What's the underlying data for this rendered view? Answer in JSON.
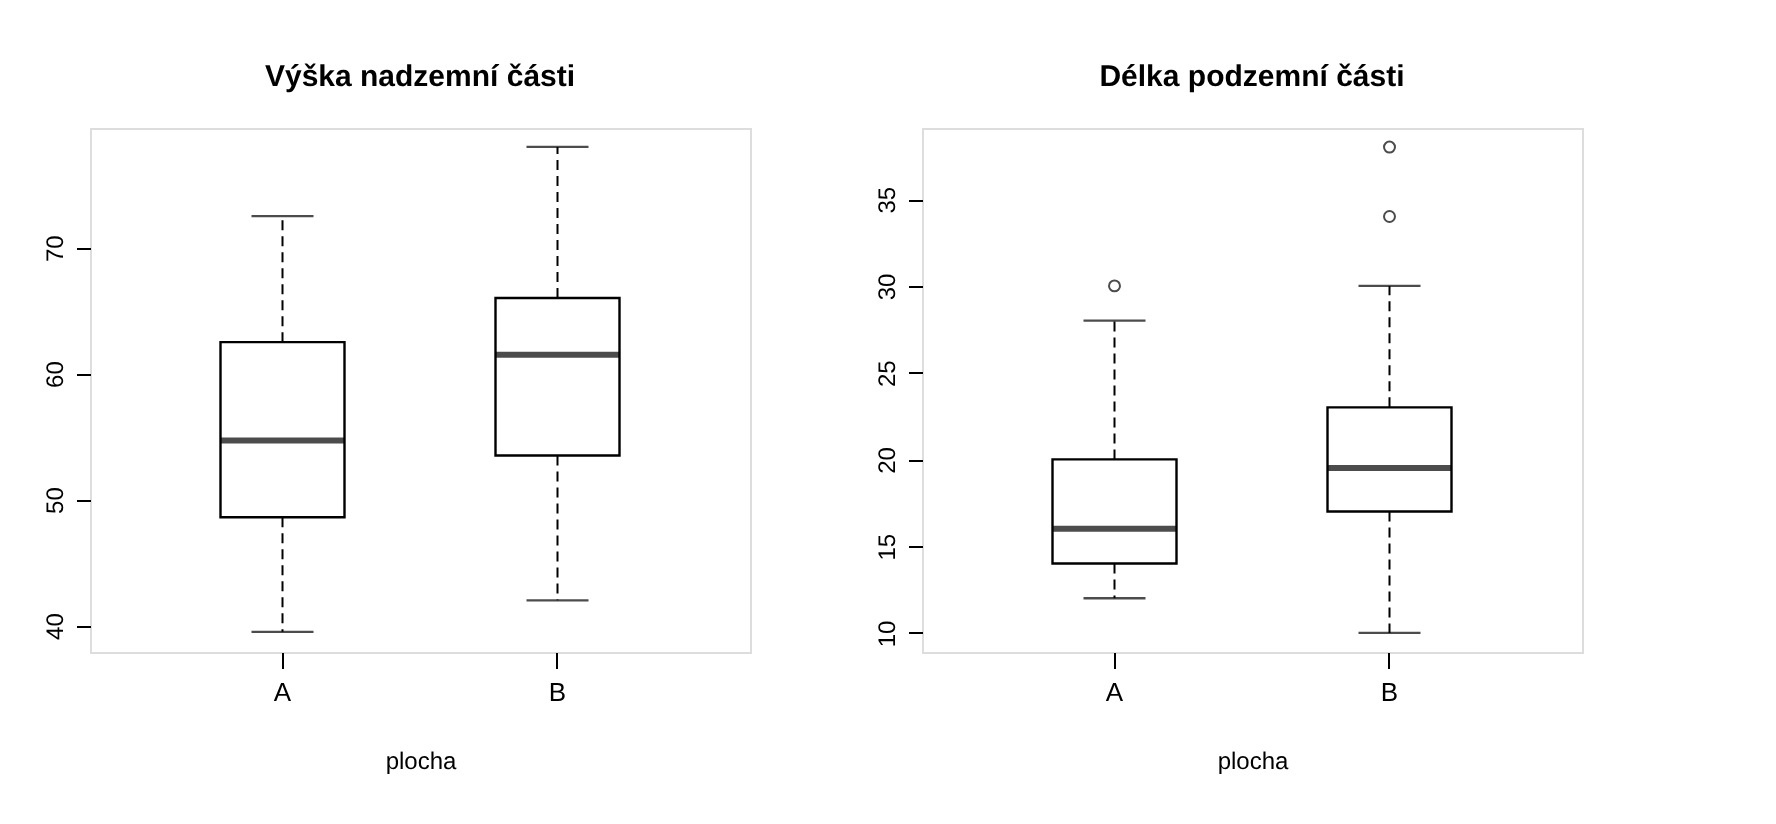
{
  "chart_data": [
    {
      "type": "box",
      "title": "Výška nadzemní části",
      "xlabel": "plocha",
      "categories": [
        "A",
        "B"
      ],
      "ylim": [
        37.9,
        79.5
      ],
      "yticks": [
        40,
        50,
        60,
        70
      ],
      "grid": false,
      "boxes": [
        {
          "low": 39.5,
          "q1": 48.6,
          "median": 54.7,
          "q3": 62.5,
          "high": 72.5
        },
        {
          "low": 42,
          "q1": 53.5,
          "median": 61.5,
          "q3": 66,
          "high": 78
        }
      ]
    },
    {
      "type": "box",
      "title": "Délka podzemní části",
      "xlabel": "plocha",
      "categories": [
        "A",
        "B"
      ],
      "ylim": [
        8.9,
        39.1
      ],
      "yticks": [
        10,
        15,
        20,
        25,
        30,
        35
      ],
      "grid": false,
      "boxes": [
        {
          "low": 12,
          "q1": 14,
          "median": 16,
          "q3": 20,
          "high": 28,
          "outliers": [
            30
          ]
        },
        {
          "low": 10,
          "q1": 17,
          "median": 19.5,
          "q3": 23,
          "high": 30,
          "outliers": [
            34,
            38
          ]
        }
      ]
    }
  ]
}
